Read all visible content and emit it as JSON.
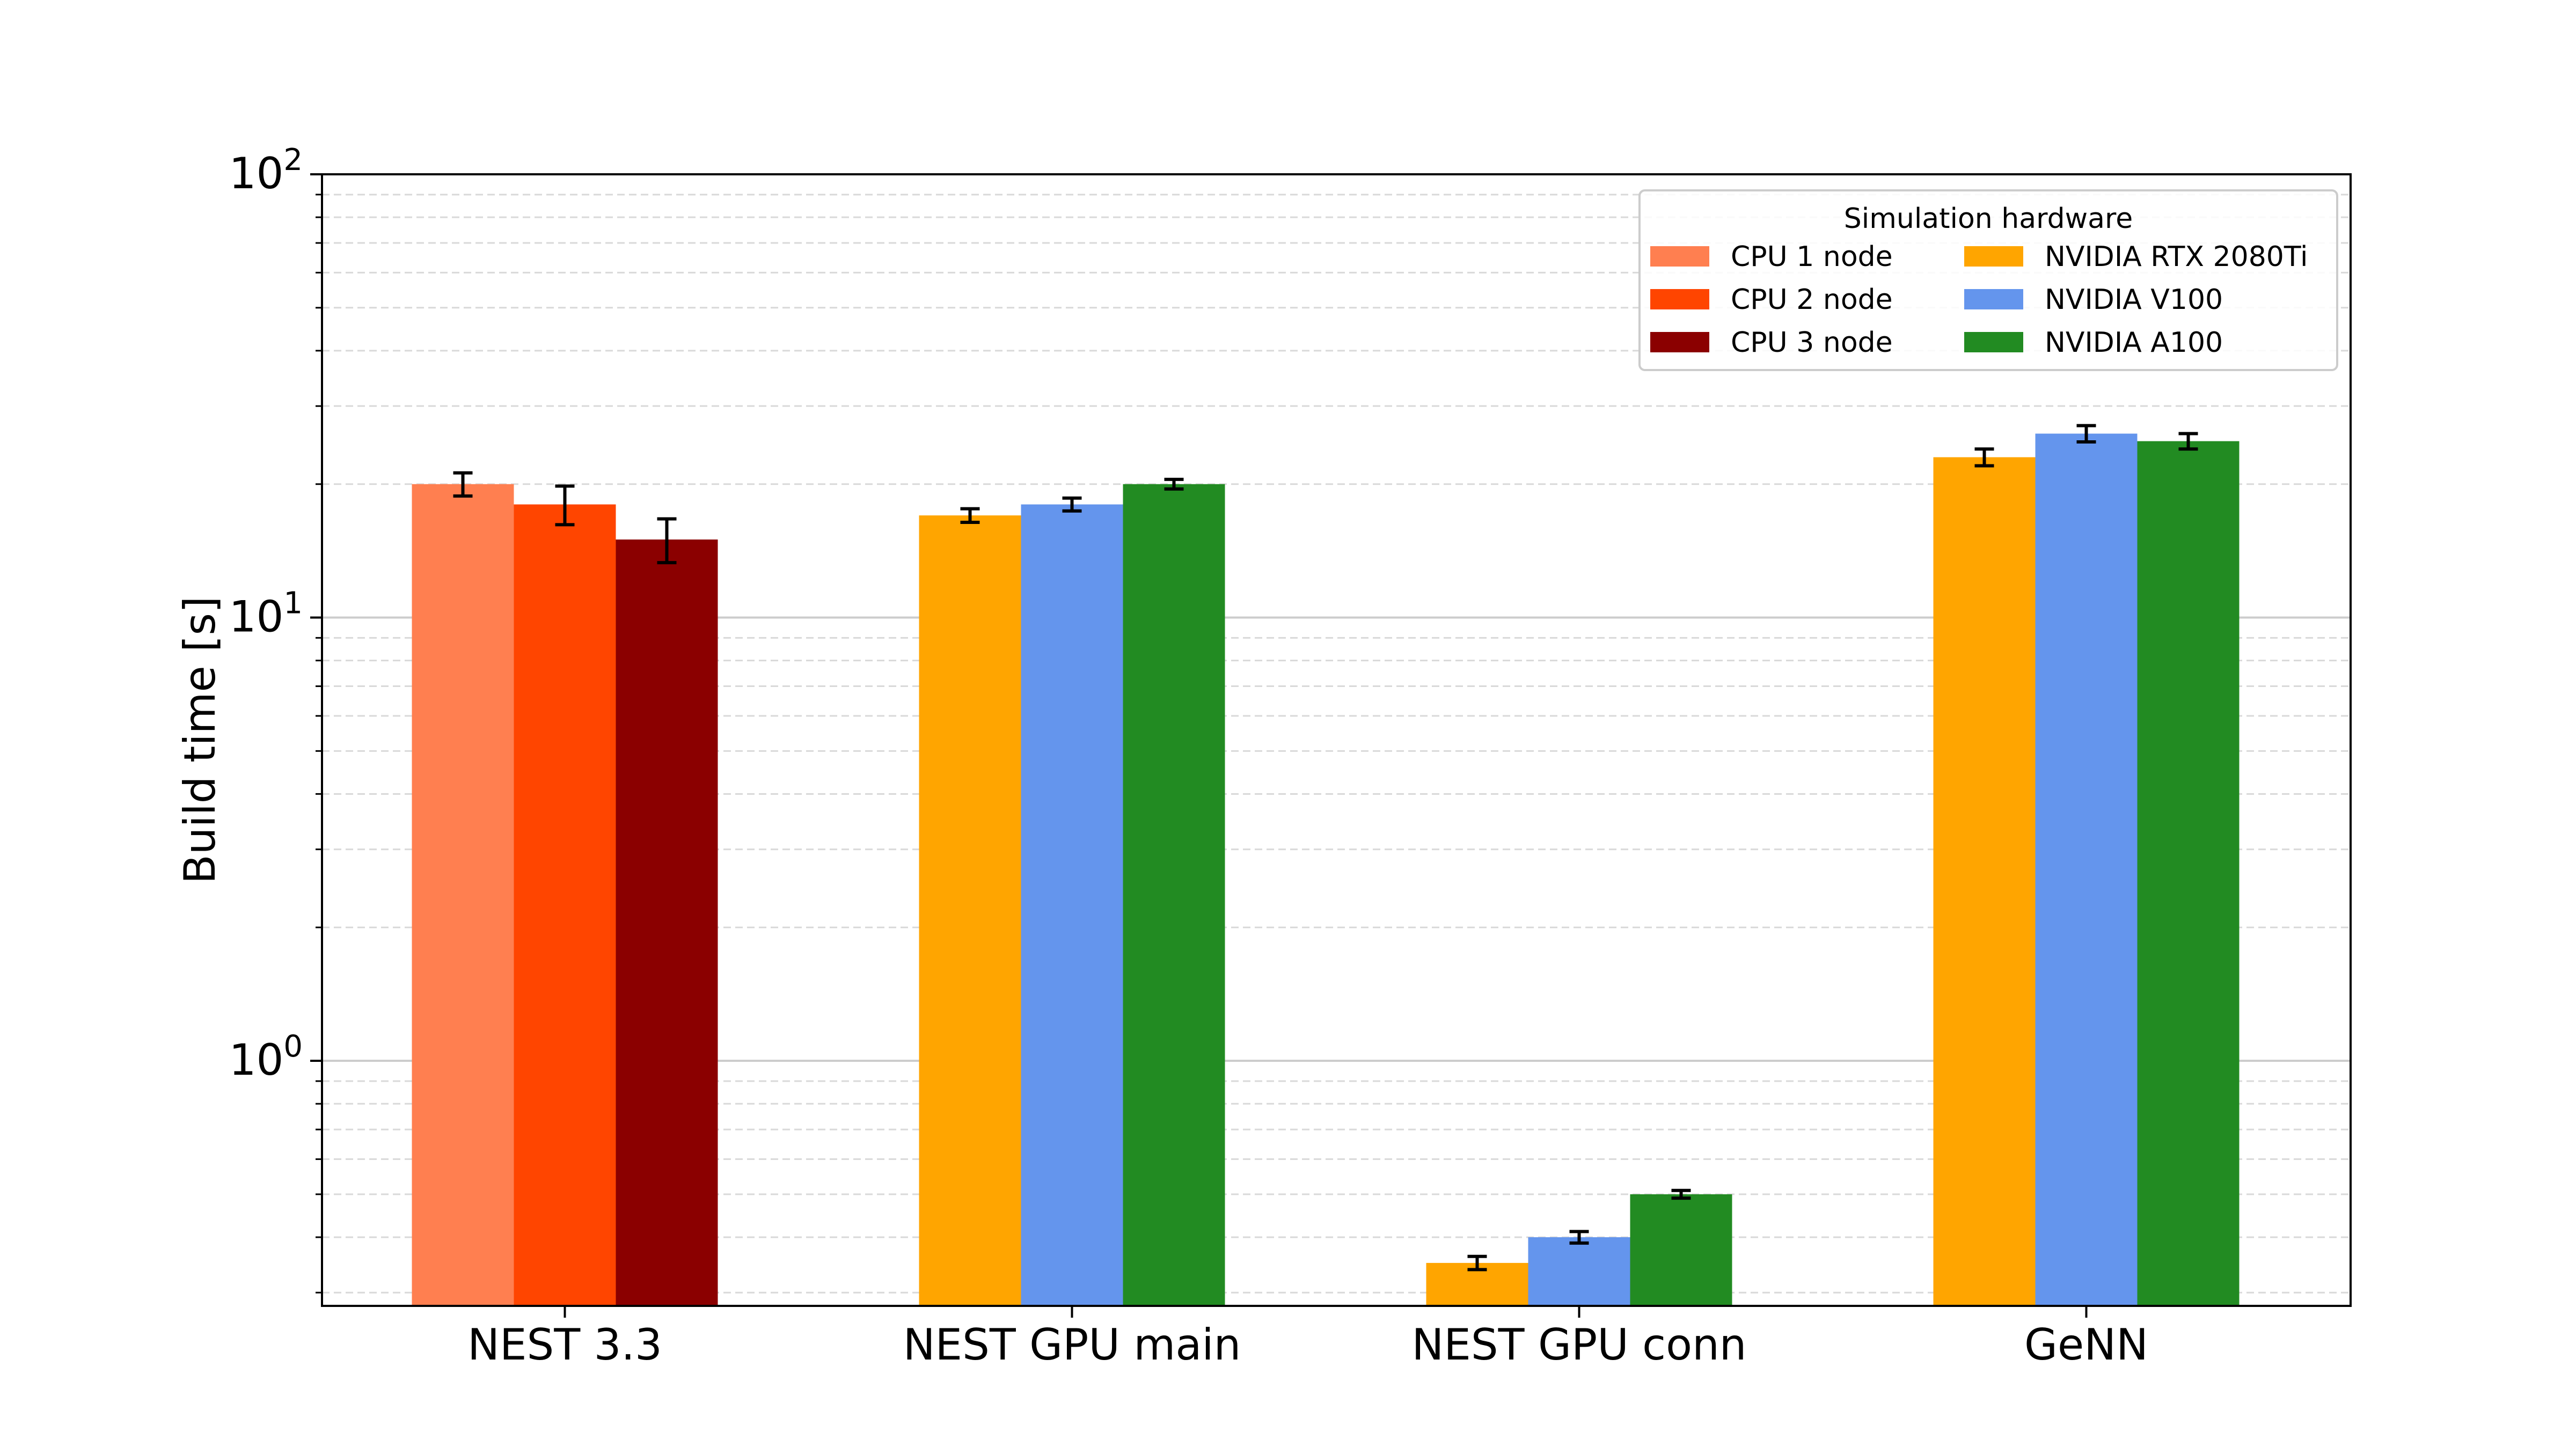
{
  "chart_data": {
    "type": "bar",
    "title": "",
    "xlabel": "",
    "ylabel": "Build time [s]",
    "yscale": "log",
    "ylim": [
      0.28,
      100
    ],
    "y_tick_labels": [
      {
        "base": "10",
        "exp": "2",
        "value": 100
      },
      {
        "base": "10",
        "exp": "1",
        "value": 10
      },
      {
        "base": "10",
        "exp": "0",
        "value": 1
      }
    ],
    "grid": "y major solid, y minor dashed",
    "categories": [
      "NEST 3.3",
      "NEST GPU main",
      "NEST GPU conn",
      "GeNN"
    ],
    "legend": {
      "title": "Simulation hardware",
      "placement": "top-right",
      "columns": 2
    },
    "series": [
      {
        "name": "CPU 1 node",
        "color": "#FF7F50",
        "slot": 0,
        "values": [
          20.0,
          null,
          null,
          null
        ],
        "errors": [
          1.2,
          null,
          null,
          null
        ]
      },
      {
        "name": "CPU 2 node",
        "color": "#FF4500",
        "slot": 1,
        "values": [
          18.0,
          null,
          null,
          null
        ],
        "errors": [
          1.8,
          null,
          null,
          null
        ]
      },
      {
        "name": "CPU 3 node",
        "color": "#8B0000",
        "slot": 2,
        "values": [
          15.0,
          null,
          null,
          null
        ],
        "errors": [
          1.7,
          null,
          null,
          null
        ]
      },
      {
        "name": "NVIDIA RTX 2080Ti",
        "color": "#FFA500",
        "slot": 0,
        "values": [
          null,
          17.0,
          0.35,
          23.0
        ],
        "errors": [
          null,
          0.6,
          0.012,
          1.0
        ]
      },
      {
        "name": "NVIDIA V100",
        "color": "#6495ED",
        "slot": 1,
        "values": [
          null,
          18.0,
          0.4,
          26.0
        ],
        "errors": [
          null,
          0.6,
          0.012,
          1.1
        ]
      },
      {
        "name": "NVIDIA A100",
        "color": "#228B22",
        "slot": 2,
        "values": [
          null,
          20.0,
          0.5,
          25.0
        ],
        "errors": [
          null,
          0.5,
          0.01,
          1.0
        ]
      }
    ]
  }
}
